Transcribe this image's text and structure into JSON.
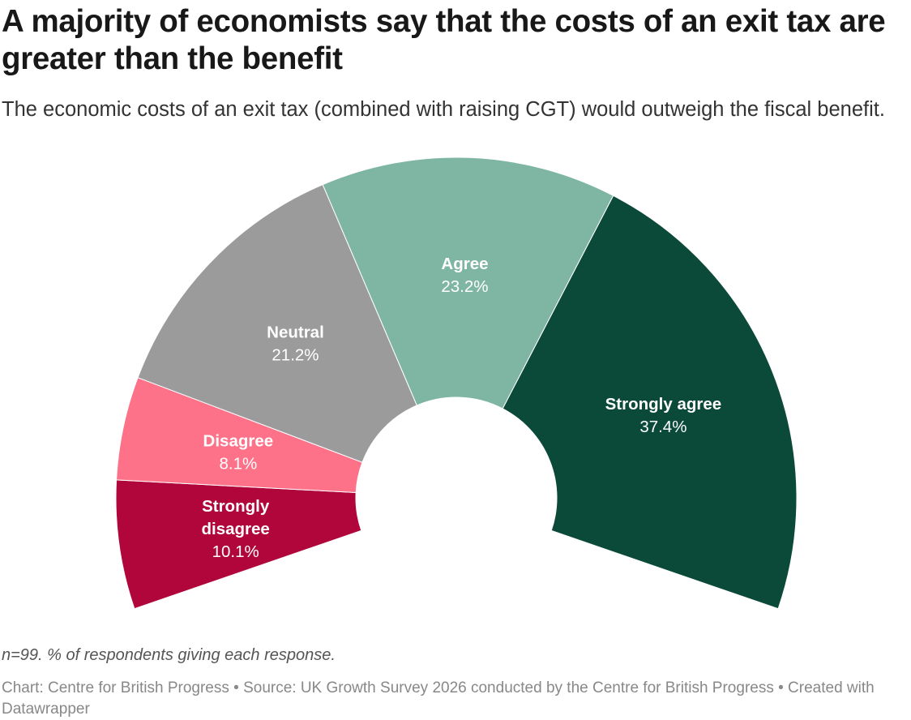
{
  "header": {
    "title": "A majority of economists say that the costs of an exit tax are greater than the benefit",
    "subtitle": "The economic costs of an exit tax (combined with raising CGT) would outweigh the fiscal benefit."
  },
  "chart_data": {
    "type": "pie",
    "variant": "semi-donut",
    "title": "A majority of economists say that the costs of an exit tax are greater than the benefit",
    "subtitle": "The economic costs of an exit tax (combined with raising CGT) would outweigh the fiscal benefit.",
    "unit": "%",
    "series": [
      {
        "label": "Strongly disagree",
        "label_lines": [
          "Strongly",
          "disagree"
        ],
        "value": 10.1,
        "value_label": "10.1%",
        "color": "#b0063b"
      },
      {
        "label": "Disagree",
        "label_lines": [
          "Disagree"
        ],
        "value": 8.1,
        "value_label": "8.1%",
        "color": "#fd7289"
      },
      {
        "label": "Neutral",
        "label_lines": [
          "Neutral"
        ],
        "value": 21.2,
        "value_label": "21.2%",
        "color": "#9b9b9b"
      },
      {
        "label": "Agree",
        "label_lines": [
          "Agree"
        ],
        "value": 23.2,
        "value_label": "23.2%",
        "color": "#7fb6a3"
      },
      {
        "label": "Strongly agree",
        "label_lines": [
          "Strongly agree"
        ],
        "value": 37.4,
        "value_label": "37.4%",
        "color": "#0b4a39"
      }
    ]
  },
  "notes": "n=99. % of respondents giving each response.",
  "footer": "Chart: Centre for British Progress • Source: UK Growth Survey 2026 conducted by the Centre for British Progress • Created with Datawrapper"
}
